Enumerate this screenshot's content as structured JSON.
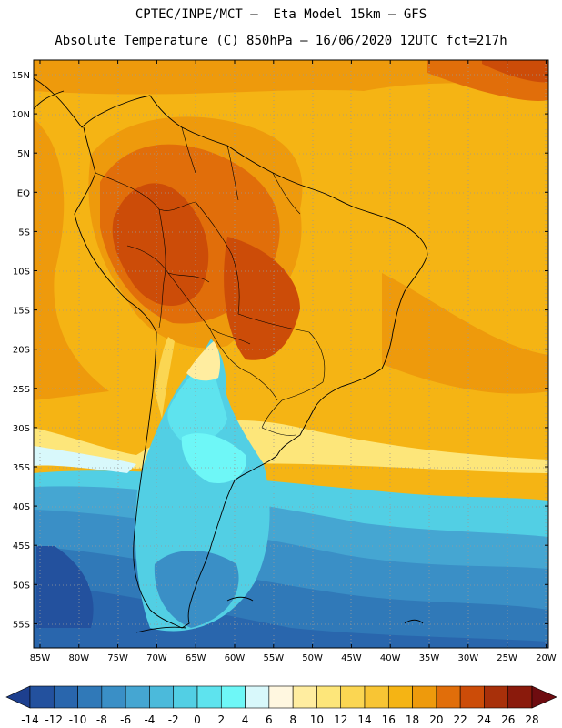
{
  "header": {
    "line1": "CPTEC/INPE/MCT —  Eta Model 15km — GFS",
    "line2": "Absolute Temperature (C) 850hPa — 16/06/2020 12UTC fct=217h"
  },
  "map": {
    "region": "South America",
    "lat_labels": [
      "15N",
      "10N",
      "5N",
      "EQ",
      "5S",
      "10S",
      "15S",
      "20S",
      "25S",
      "30S",
      "35S",
      "40S",
      "45S",
      "50S",
      "55S"
    ],
    "lon_labels": [
      "85W",
      "80W",
      "75W",
      "70W",
      "65W",
      "60W",
      "55W",
      "50W",
      "45W",
      "40W",
      "35W",
      "30W",
      "25W",
      "20W"
    ]
  },
  "legend": {
    "values": [
      "-14",
      "-12",
      "-10",
      "-8",
      "-6",
      "-4",
      "-2",
      "0",
      "2",
      "4",
      "6",
      "8",
      "10",
      "12",
      "14",
      "16",
      "18",
      "20",
      "22",
      "24",
      "26",
      "28"
    ],
    "colors": [
      "#1d3f8e",
      "#23519e",
      "#2966ad",
      "#3079b8",
      "#3a8fc6",
      "#45a6d2",
      "#4bbadb",
      "#52cfe4",
      "#5ee3ee",
      "#6ef7f7",
      "#d8f8fb",
      "#fff7e0",
      "#ffeda0",
      "#fde67a",
      "#fbd652",
      "#f8c534",
      "#f5b414",
      "#ee9a0c",
      "#e16e0a",
      "#cc4c08",
      "#a8300a",
      "#8a1a0c",
      "#6e0c10"
    ]
  }
}
